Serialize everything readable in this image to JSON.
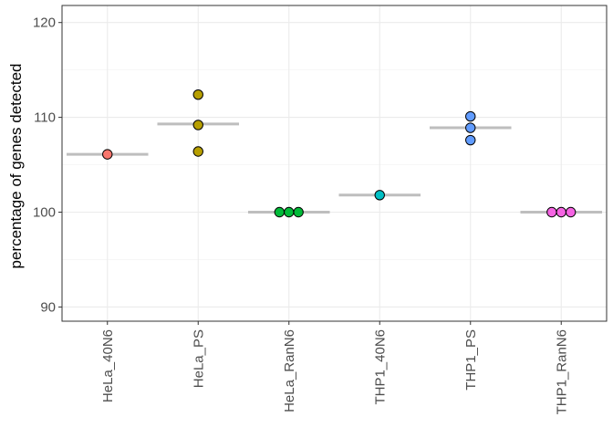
{
  "chart_data": {
    "type": "scatter",
    "title": "",
    "xlabel": "",
    "ylabel": "percentage of genes detected",
    "ylim": [
      88.5,
      121.8
    ],
    "yticks": [
      90,
      100,
      110,
      120
    ],
    "grid": true,
    "legend": "none",
    "categories": [
      "HeLa_40N6",
      "HeLa_PS",
      "HeLa_RanN6",
      "THP1_40N6",
      "THP1_PS",
      "THP1_RanN6"
    ],
    "colors": [
      "#F8766D",
      "#B79F00",
      "#00BA38",
      "#00BFC4",
      "#619CFF",
      "#F564E3"
    ],
    "mean_line_color": "#bebebe",
    "points": [
      {
        "category": "HeLa_40N6",
        "values": [
          106.1
        ]
      },
      {
        "category": "HeLa_PS",
        "values": [
          112.4,
          109.2,
          106.4
        ]
      },
      {
        "category": "HeLa_RanN6",
        "values": [
          100.0,
          100.0,
          100.0
        ]
      },
      {
        "category": "THP1_40N6",
        "values": [
          101.8
        ]
      },
      {
        "category": "THP1_PS",
        "values": [
          110.1,
          108.9,
          107.6
        ]
      },
      {
        "category": "THP1_RanN6",
        "values": [
          100.0,
          100.0,
          100.0
        ]
      }
    ],
    "means": [
      106.1,
      109.3,
      100.0,
      101.8,
      108.9,
      100.0
    ]
  }
}
